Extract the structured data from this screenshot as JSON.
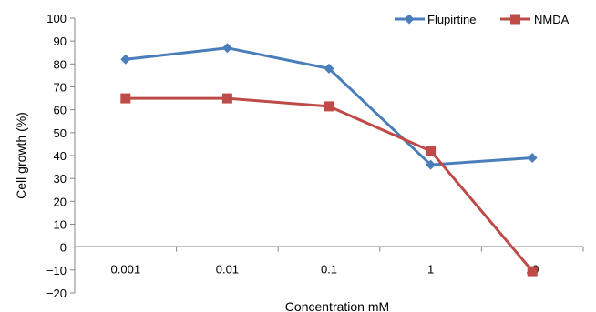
{
  "chart_data": {
    "type": "line",
    "categories": [
      "0.001",
      "0.01",
      "0.1",
      "1",
      "10"
    ],
    "xlabel": "Concentration mM",
    "ylabel": "Cell growth (%)",
    "ylim": [
      -20,
      100
    ],
    "yticks": [
      "100",
      "90",
      "80",
      "70",
      "60",
      "50",
      "40",
      "30",
      "20",
      "10",
      "0",
      "−10",
      "−20"
    ],
    "grid": false,
    "legend_position": "top-right",
    "series": [
      {
        "name": "Flupirtine",
        "color": "#4a7ebb",
        "marker": "diamond",
        "values": [
          82,
          87,
          78,
          36,
          39
        ]
      },
      {
        "name": "NMDA",
        "color": "#be4b48",
        "marker": "square",
        "values": [
          65,
          65,
          61.5,
          42,
          -10.5
        ]
      }
    ]
  }
}
